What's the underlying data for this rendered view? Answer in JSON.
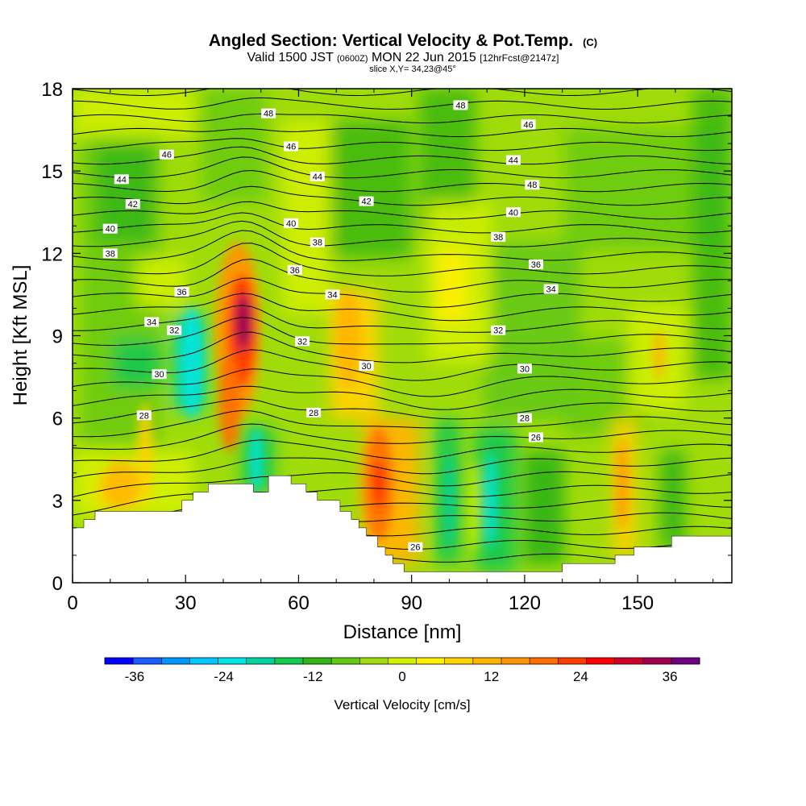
{
  "title": {
    "main": "Angled Section: Vertical Velocity & Pot.Temp.",
    "units_tag": "(C)",
    "valid_prefix": "Valid 1500 JST",
    "valid_utc": "(0600Z)",
    "valid_date": "MON 22 Jun 2015",
    "forecast_tag": "[12hrFcst@2147z]",
    "slice": "slice X,Y= 34,23@45°"
  },
  "chart_data": {
    "type": "heatmap",
    "xlabel": "Distance [nm]",
    "ylabel": "Height [Kft MSL]",
    "xlim": [
      0,
      175
    ],
    "ylim": [
      0,
      18
    ],
    "x_ticks": [
      0,
      30,
      60,
      90,
      120,
      150
    ],
    "y_ticks": [
      0,
      3,
      6,
      9,
      12,
      15,
      18
    ],
    "colorbar": {
      "label": "Vertical Velocity [cm/s]",
      "min": -40,
      "max": 40,
      "ticks": [
        -36,
        -24,
        -12,
        0,
        12,
        24,
        36
      ],
      "colors": [
        "#0000ff",
        "#1a5cff",
        "#0096ff",
        "#00c8ff",
        "#00e6e6",
        "#00d2a0",
        "#14c850",
        "#32b414",
        "#64c814",
        "#a0dc0a",
        "#d2f000",
        "#fff000",
        "#ffd200",
        "#ffb400",
        "#ff9600",
        "#ff6e00",
        "#ff3c00",
        "#ff0000",
        "#d20028",
        "#a00050",
        "#6e0082"
      ]
    },
    "contour_labels": [
      {
        "x": 52,
        "y": 17.1,
        "text": "48"
      },
      {
        "x": 103,
        "y": 17.4,
        "text": "48"
      },
      {
        "x": 122,
        "y": 14.5,
        "text": "48"
      },
      {
        "x": 25,
        "y": 15.6,
        "text": "46"
      },
      {
        "x": 58,
        "y": 15.9,
        "text": "46"
      },
      {
        "x": 121,
        "y": 16.7,
        "text": "46"
      },
      {
        "x": 13,
        "y": 14.7,
        "text": "44"
      },
      {
        "x": 65,
        "y": 14.8,
        "text": "44"
      },
      {
        "x": 117,
        "y": 15.4,
        "text": "44"
      },
      {
        "x": 16,
        "y": 13.8,
        "text": "42"
      },
      {
        "x": 78,
        "y": 13.9,
        "text": "42"
      },
      {
        "x": 10,
        "y": 12.9,
        "text": "40"
      },
      {
        "x": 58,
        "y": 13.1,
        "text": "40"
      },
      {
        "x": 117,
        "y": 13.5,
        "text": "40"
      },
      {
        "x": 10,
        "y": 12.0,
        "text": "38"
      },
      {
        "x": 65,
        "y": 12.4,
        "text": "38"
      },
      {
        "x": 113,
        "y": 12.6,
        "text": "38"
      },
      {
        "x": 59,
        "y": 11.4,
        "text": "36"
      },
      {
        "x": 29,
        "y": 10.6,
        "text": "36"
      },
      {
        "x": 123,
        "y": 11.6,
        "text": "36"
      },
      {
        "x": 21,
        "y": 9.5,
        "text": "34"
      },
      {
        "x": 69,
        "y": 10.5,
        "text": "34"
      },
      {
        "x": 127,
        "y": 10.7,
        "text": "34"
      },
      {
        "x": 27,
        "y": 9.2,
        "text": "32"
      },
      {
        "x": 61,
        "y": 8.8,
        "text": "32"
      },
      {
        "x": 113,
        "y": 9.2,
        "text": "32"
      },
      {
        "x": 23,
        "y": 7.6,
        "text": "30"
      },
      {
        "x": 78,
        "y": 7.9,
        "text": "30"
      },
      {
        "x": 120,
        "y": 7.8,
        "text": "30"
      },
      {
        "x": 19,
        "y": 6.1,
        "text": "28"
      },
      {
        "x": 64,
        "y": 6.2,
        "text": "28"
      },
      {
        "x": 120,
        "y": 6.0,
        "text": "28"
      },
      {
        "x": 123,
        "y": 5.3,
        "text": "26"
      },
      {
        "x": 91,
        "y": 1.3,
        "text": "26"
      }
    ],
    "terrain_profile": [
      [
        0,
        2.0
      ],
      [
        3,
        2.3
      ],
      [
        6,
        2.6
      ],
      [
        29,
        3.0
      ],
      [
        32,
        3.3
      ],
      [
        36,
        3.6
      ],
      [
        48,
        3.3
      ],
      [
        52,
        3.9
      ],
      [
        58,
        3.6
      ],
      [
        62,
        3.3
      ],
      [
        65,
        3.0
      ],
      [
        71,
        2.6
      ],
      [
        74,
        2.3
      ],
      [
        76,
        2.0
      ],
      [
        78,
        1.7
      ],
      [
        81,
        1.3
      ],
      [
        83,
        1.0
      ],
      [
        85,
        0.7
      ],
      [
        88,
        0.4
      ],
      [
        130,
        0.7
      ],
      [
        144,
        1.0
      ],
      [
        149,
        1.3
      ],
      [
        159,
        1.7
      ],
      [
        175,
        1.7
      ]
    ]
  }
}
